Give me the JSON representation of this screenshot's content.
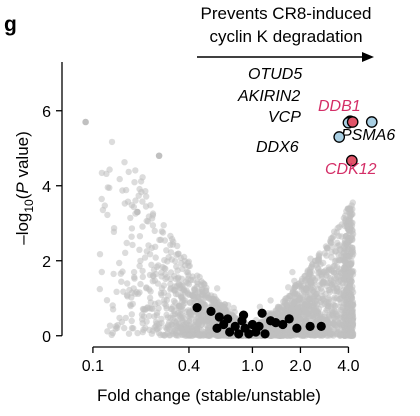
{
  "panel_letter": "g",
  "colors": {
    "background_points": "#c0c0c0",
    "hit_point": "#000000",
    "highlight_red": "#e05468",
    "highlight_blue": "#a9cfe3",
    "red_label": "#d42e67",
    "axis": "#000000"
  },
  "chart_data": {
    "type": "scatter",
    "title": "",
    "xlabel": "Fold change (stable/unstable)",
    "ylabel_parts": {
      "prefix": "–log",
      "sub": "10",
      "open": "(",
      "italic": "P",
      "rest": " value)"
    },
    "x_scale": "log2",
    "xlim": [
      0.064,
      7.5
    ],
    "ylim": [
      -0.3,
      7.3
    ],
    "x_ticks": [
      0.1,
      0.4,
      1.0,
      2.0,
      4.0
    ],
    "x_tick_labels": [
      "0.1",
      "0.4",
      "1.0",
      "2.0",
      "4.0"
    ],
    "y_ticks": [
      0,
      2,
      4,
      6
    ],
    "y_tick_labels": [
      "0",
      "2",
      "4",
      "6"
    ],
    "annotation": {
      "line1": "Prevents CR8-induced",
      "line2": "cyclin K degradation",
      "arrow_direction": "right"
    },
    "background_series": {
      "description": "all other genes",
      "outlier_points": [
        {
          "x": 0.09,
          "y": 5.7
        },
        {
          "x": 0.26,
          "y": 4.8
        },
        {
          "x": 0.19,
          "y": 3.3
        }
      ]
    },
    "hit_series": {
      "points": [
        {
          "x": 0.45,
          "y": 0.75
        },
        {
          "x": 0.55,
          "y": 0.65
        },
        {
          "x": 0.6,
          "y": 0.2
        },
        {
          "x": 0.62,
          "y": 0.5
        },
        {
          "x": 0.66,
          "y": 0.3
        },
        {
          "x": 0.7,
          "y": 0.45
        },
        {
          "x": 0.72,
          "y": 0.1
        },
        {
          "x": 0.78,
          "y": 0.25
        },
        {
          "x": 0.82,
          "y": 0.05
        },
        {
          "x": 0.86,
          "y": 0.4
        },
        {
          "x": 0.9,
          "y": 0.2
        },
        {
          "x": 0.95,
          "y": 0.05
        },
        {
          "x": 1.0,
          "y": 0.3
        },
        {
          "x": 1.05,
          "y": 0.1
        },
        {
          "x": 1.1,
          "y": 0.25
        },
        {
          "x": 1.2,
          "y": 0.05
        },
        {
          "x": 1.3,
          "y": 0.4
        },
        {
          "x": 1.4,
          "y": 0.35
        },
        {
          "x": 1.55,
          "y": 0.3
        },
        {
          "x": 1.7,
          "y": 0.45
        },
        {
          "x": 1.9,
          "y": 0.2
        },
        {
          "x": 2.3,
          "y": 0.25
        },
        {
          "x": 2.7,
          "y": 0.25
        },
        {
          "x": 1.15,
          "y": 0.6
        },
        {
          "x": 0.88,
          "y": 0.55
        }
      ]
    },
    "labeled_genes": [
      {
        "name": "OTUD5",
        "x": 4.1,
        "y": 5.72,
        "color": "blue",
        "label_color": "black"
      },
      {
        "name": "AKIRIN2",
        "x": 4.05,
        "y": 5.7,
        "color": "blue",
        "label_color": "black"
      },
      {
        "name": "VCP",
        "x": 4.0,
        "y": 5.68,
        "color": "blue",
        "label_color": "black"
      },
      {
        "name": "DDB1",
        "x": 4.25,
        "y": 5.7,
        "color": "red",
        "label_color": "red"
      },
      {
        "name": "PSMA6",
        "x": 5.6,
        "y": 5.7,
        "color": "blue",
        "label_color": "black"
      },
      {
        "name": "DDX6",
        "x": 3.5,
        "y": 5.3,
        "color": "blue",
        "label_color": "black"
      },
      {
        "name": "CDK12",
        "x": 4.2,
        "y": 4.67,
        "color": "red",
        "label_color": "red"
      }
    ]
  }
}
